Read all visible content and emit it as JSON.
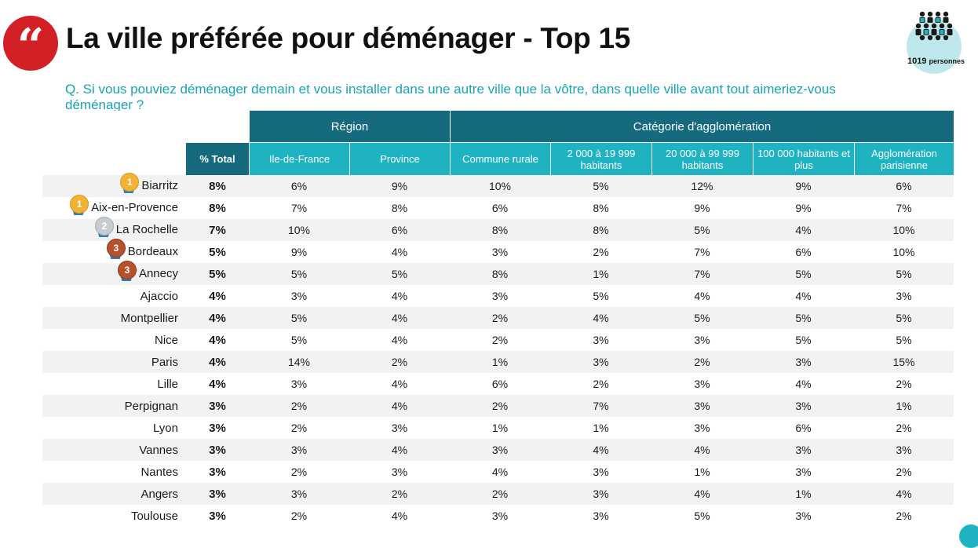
{
  "header": {
    "title": "La ville préférée pour déménager - Top 15",
    "quote_icon": "quote-icon",
    "respondents_count": "1019",
    "respondents_label": "personnes"
  },
  "question": "Q. Si vous pouviez déménager demain et vous installer dans une autre ville que la vôtre, dans quelle ville avant tout aimeriez-vous déménager ?",
  "table": {
    "group_headers": {
      "region": "Région",
      "agglomeration": "Catégorie d'agglomération"
    },
    "columns": {
      "total": "% Total",
      "idf": "Ile-de-France",
      "province": "Province",
      "rurale": "Commune rurale",
      "a2000": "2 000 à 19 999 habitants",
      "a20000": "20 000 à 99 999 habitants",
      "a100000": "100 000 habitants et plus",
      "parisienne": "Agglomération parisienne"
    },
    "rows": [
      {
        "city": "Biarritz",
        "medal": "1",
        "total": "8%",
        "values": [
          "6%",
          "9%",
          "10%",
          "5%",
          "12%",
          "9%",
          "6%"
        ]
      },
      {
        "city": "Aix-en-Provence",
        "medal": "1",
        "total": "8%",
        "values": [
          "7%",
          "8%",
          "6%",
          "8%",
          "9%",
          "9%",
          "7%"
        ]
      },
      {
        "city": "La Rochelle",
        "medal": "2",
        "total": "7%",
        "values": [
          "10%",
          "6%",
          "8%",
          "8%",
          "5%",
          "4%",
          "10%"
        ]
      },
      {
        "city": "Bordeaux",
        "medal": "3",
        "total": "5%",
        "values": [
          "9%",
          "4%",
          "3%",
          "2%",
          "7%",
          "6%",
          "10%"
        ]
      },
      {
        "city": "Annecy",
        "medal": "3",
        "total": "5%",
        "values": [
          "5%",
          "5%",
          "8%",
          "1%",
          "7%",
          "5%",
          "5%"
        ]
      },
      {
        "city": "Ajaccio",
        "medal": "",
        "total": "4%",
        "values": [
          "3%",
          "4%",
          "3%",
          "5%",
          "4%",
          "4%",
          "3%"
        ]
      },
      {
        "city": "Montpellier",
        "medal": "",
        "total": "4%",
        "values": [
          "5%",
          "4%",
          "2%",
          "4%",
          "5%",
          "5%",
          "5%"
        ]
      },
      {
        "city": "Nice",
        "medal": "",
        "total": "4%",
        "values": [
          "5%",
          "4%",
          "2%",
          "3%",
          "3%",
          "5%",
          "5%"
        ]
      },
      {
        "city": "Paris",
        "medal": "",
        "total": "4%",
        "values": [
          "14%",
          "2%",
          "1%",
          "3%",
          "2%",
          "3%",
          "15%"
        ]
      },
      {
        "city": "Lille",
        "medal": "",
        "total": "4%",
        "values": [
          "3%",
          "4%",
          "6%",
          "2%",
          "3%",
          "4%",
          "2%"
        ]
      },
      {
        "city": "Perpignan",
        "medal": "",
        "total": "3%",
        "values": [
          "2%",
          "4%",
          "2%",
          "7%",
          "3%",
          "3%",
          "1%"
        ]
      },
      {
        "city": "Lyon",
        "medal": "",
        "total": "3%",
        "values": [
          "2%",
          "3%",
          "1%",
          "1%",
          "3%",
          "6%",
          "2%"
        ]
      },
      {
        "city": "Vannes",
        "medal": "",
        "total": "3%",
        "values": [
          "3%",
          "4%",
          "3%",
          "4%",
          "4%",
          "3%",
          "3%"
        ]
      },
      {
        "city": "Nantes",
        "medal": "",
        "total": "3%",
        "values": [
          "2%",
          "3%",
          "4%",
          "3%",
          "1%",
          "3%",
          "2%"
        ]
      },
      {
        "city": "Angers",
        "medal": "",
        "total": "3%",
        "values": [
          "3%",
          "2%",
          "2%",
          "3%",
          "4%",
          "1%",
          "4%"
        ]
      },
      {
        "city": "Toulouse",
        "medal": "",
        "total": "3%",
        "values": [
          "2%",
          "4%",
          "3%",
          "3%",
          "5%",
          "3%",
          "2%"
        ]
      }
    ]
  }
}
